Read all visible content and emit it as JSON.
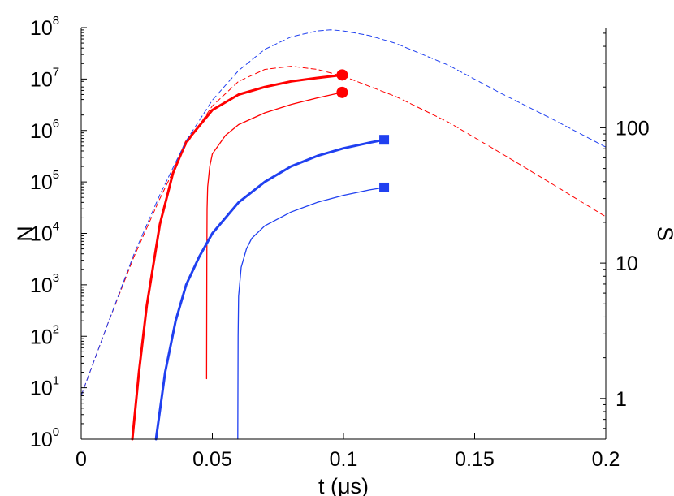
{
  "chart_data": {
    "type": "line",
    "xlabel": "t (μs)",
    "ylabel_left": "N",
    "ylabel_right": "S",
    "xlim": [
      0,
      0.2
    ],
    "ylim_left": [
      1,
      100000000
    ],
    "ylim_right": [
      0.5,
      550
    ],
    "x_scale": "linear",
    "y_left_scale": "log",
    "y_right_scale": "log",
    "grid": false,
    "x_ticks": [
      {
        "value": 0,
        "label": "0"
      },
      {
        "value": 0.05,
        "label": "0.05"
      },
      {
        "value": 0.1,
        "label": "0.1"
      },
      {
        "value": 0.15,
        "label": "0.15"
      },
      {
        "value": 0.2,
        "label": "0.2"
      }
    ],
    "y_left_ticks": [
      {
        "value": 1,
        "base": "10",
        "exp": "0"
      },
      {
        "value": 10,
        "base": "10",
        "exp": "1"
      },
      {
        "value": 100,
        "base": "10",
        "exp": "2"
      },
      {
        "value": 1000,
        "base": "10",
        "exp": "3"
      },
      {
        "value": 10000,
        "base": "10",
        "exp": "4"
      },
      {
        "value": 100000,
        "base": "10",
        "exp": "5"
      },
      {
        "value": 1000000,
        "base": "10",
        "exp": "6"
      },
      {
        "value": 10000000,
        "base": "10",
        "exp": "7"
      },
      {
        "value": 100000000,
        "base": "10",
        "exp": "8"
      }
    ],
    "y_right_ticks": [
      {
        "value": 1,
        "label": "1"
      },
      {
        "value": 10,
        "label": "10"
      },
      {
        "value": 100,
        "label": "100"
      }
    ],
    "series": [
      {
        "axis": "left",
        "color": "#ff0000",
        "width": 3,
        "dash": "none",
        "marker": "circle",
        "x": [
          0.0195,
          0.022,
          0.025,
          0.03,
          0.035,
          0.04,
          0.05,
          0.06,
          0.07,
          0.08,
          0.09,
          0.0995
        ],
        "y": [
          1,
          20,
          400,
          15000,
          150000,
          600000,
          2500000,
          5000000,
          7000000,
          9000000,
          10500000,
          12000000
        ]
      },
      {
        "axis": "left",
        "color": "#ff0000",
        "width": 1.3,
        "dash": "none",
        "marker": "circle",
        "x": [
          0.0478,
          0.0479,
          0.048,
          0.0482,
          0.049,
          0.05,
          0.055,
          0.06,
          0.07,
          0.08,
          0.09,
          0.0995
        ],
        "y": [
          15,
          3000,
          30000,
          80000,
          200000,
          350000,
          800000,
          1300000,
          2200000,
          3200000,
          4300000,
          5500000
        ]
      },
      {
        "axis": "left",
        "color": "#2040f0",
        "width": 3,
        "dash": "none",
        "marker": "square",
        "x": [
          0.0285,
          0.032,
          0.036,
          0.04,
          0.045,
          0.05,
          0.06,
          0.07,
          0.08,
          0.09,
          0.1,
          0.11,
          0.1155
        ],
        "y": [
          1,
          20,
          200,
          1000,
          3500,
          10000,
          40000,
          100000,
          200000,
          320000,
          450000,
          580000,
          660000
        ]
      },
      {
        "axis": "left",
        "color": "#2040f0",
        "width": 1.3,
        "dash": "none",
        "marker": "square",
        "x": [
          0.0597,
          0.0598,
          0.06,
          0.061,
          0.063,
          0.065,
          0.07,
          0.08,
          0.09,
          0.1,
          0.11,
          0.1155
        ],
        "y": [
          1,
          100,
          600,
          2200,
          5000,
          8000,
          14000,
          26000,
          40000,
          55000,
          70000,
          78000
        ]
      },
      {
        "axis": "right",
        "color": "#ff0000",
        "width": 1,
        "dash": "6,4",
        "marker": "none",
        "x": [
          0,
          0.01,
          0.02,
          0.03,
          0.04,
          0.05,
          0.06,
          0.07,
          0.08,
          0.09,
          0.1,
          0.12,
          0.14,
          0.16,
          0.18,
          0.2
        ],
        "y": [
          1.05,
          3.5,
          11,
          30,
          75,
          145,
          220,
          270,
          285,
          270,
          240,
          170,
          110,
          65,
          38,
          22
        ]
      },
      {
        "axis": "right",
        "color": "#2040f0",
        "width": 1,
        "dash": "6,4",
        "marker": "none",
        "x": [
          0,
          0.01,
          0.02,
          0.03,
          0.04,
          0.05,
          0.06,
          0.07,
          0.08,
          0.09,
          0.095,
          0.1,
          0.11,
          0.12,
          0.14,
          0.16,
          0.18,
          0.2
        ],
        "y": [
          1.05,
          3.5,
          11.5,
          32,
          80,
          160,
          265,
          380,
          470,
          520,
          530,
          520,
          480,
          420,
          290,
          180,
          115,
          72
        ]
      }
    ]
  }
}
